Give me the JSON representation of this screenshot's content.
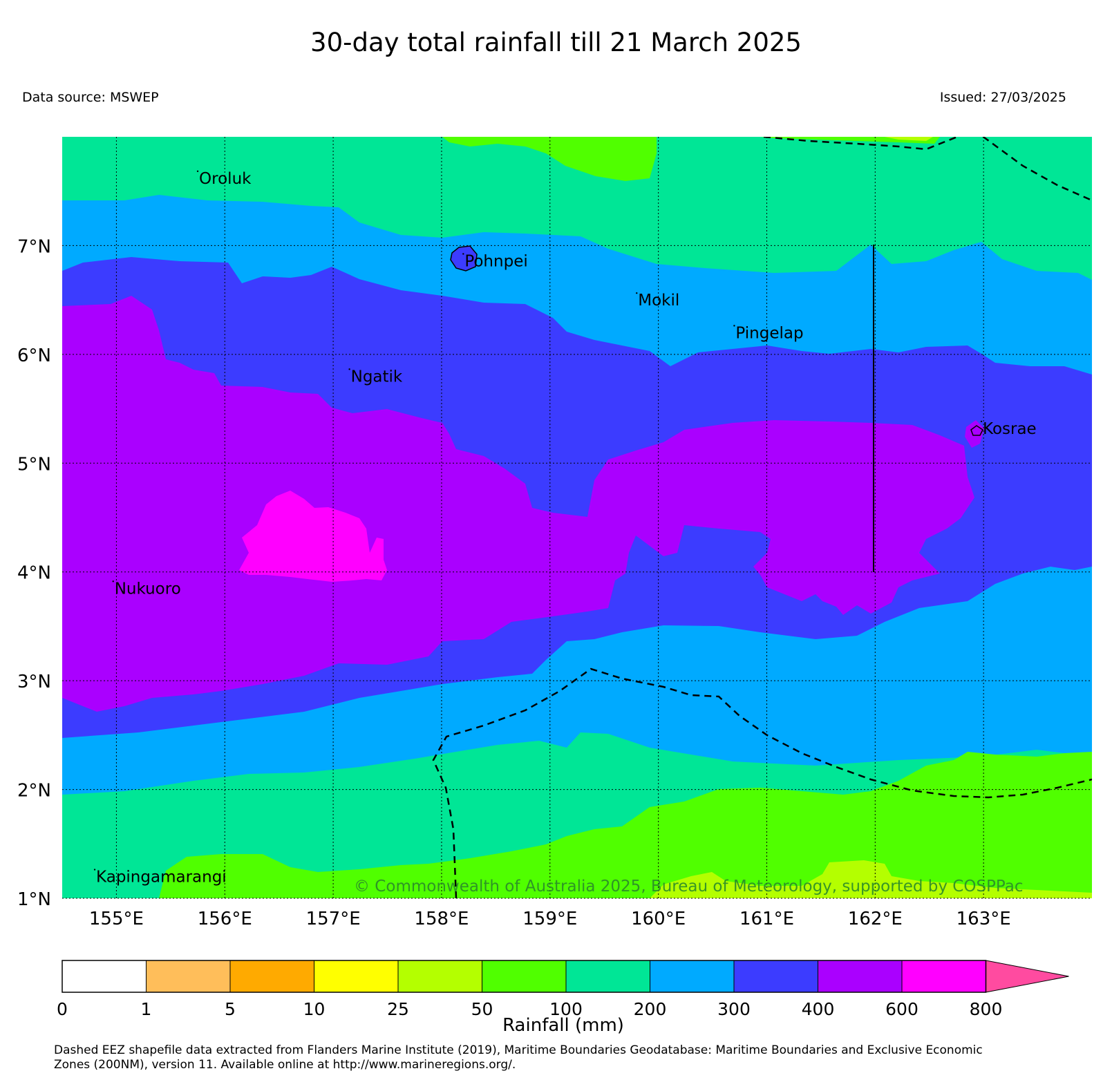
{
  "title": "30-day total rainfall till 21 March 2025",
  "data_source": "Data source: MSWEP",
  "issued": "Issued: 27/03/2025",
  "copyright": "© Commonwealth of Australia 2025, Bureau of Meteorology, supported by COSPPac",
  "footnote_line1": "Dashed EEZ shapefile data extracted from Flanders Marine Institute (2019), Maritime Boundaries Geodatabase: Maritime Boundaries and Exclusive Economic",
  "footnote_line2": "Zones (200NM), version 11. Available online at http://www.marineregions.org/.",
  "map": {
    "lon_range": [
      154.5,
      164.0
    ],
    "lat_range": [
      1.0,
      8.0
    ],
    "lon_ticks": [
      {
        "value": 155,
        "label": "155°E"
      },
      {
        "value": 156,
        "label": "156°E"
      },
      {
        "value": 157,
        "label": "157°E"
      },
      {
        "value": 158,
        "label": "158°E"
      },
      {
        "value": 159,
        "label": "159°E"
      },
      {
        "value": 160,
        "label": "160°E"
      },
      {
        "value": 161,
        "label": "161°E"
      },
      {
        "value": 162,
        "label": "162°E"
      },
      {
        "value": 163,
        "label": "163°E"
      }
    ],
    "lat_ticks": [
      {
        "value": 1,
        "label": "1°N"
      },
      {
        "value": 2,
        "label": "2°N"
      },
      {
        "value": 3,
        "label": "3°N"
      },
      {
        "value": 4,
        "label": "4°N"
      },
      {
        "value": 5,
        "label": "5°N"
      },
      {
        "value": 6,
        "label": "6°N"
      },
      {
        "value": 7,
        "label": "7°N"
      }
    ],
    "grid": true,
    "places": [
      {
        "name": "Oroluk",
        "lon": 155.75,
        "lat": 7.62
      },
      {
        "name": "Pohnpei",
        "lon": 158.2,
        "lat": 6.86
      },
      {
        "name": "Mokil",
        "lon": 159.8,
        "lat": 6.5
      },
      {
        "name": "Pingelap",
        "lon": 160.7,
        "lat": 6.2
      },
      {
        "name": "Ngatik",
        "lon": 157.15,
        "lat": 5.8
      },
      {
        "name": "Kosrae",
        "lon": 162.98,
        "lat": 5.32
      },
      {
        "name": "Nukuoro",
        "lon": 154.97,
        "lat": 3.85
      },
      {
        "name": "Kapingamarangi",
        "lon": 154.8,
        "lat": 1.2
      }
    ]
  },
  "colorbar": {
    "title": "Rainfall (mm)",
    "tick_labels": [
      "0",
      "1",
      "5",
      "10",
      "25",
      "50",
      "100",
      "200",
      "300",
      "400",
      "600",
      "800"
    ],
    "colors": [
      "#ffffff",
      "#ffbe5a",
      "#ffaa00",
      "#ffff00",
      "#b4ff00",
      "#50ff00",
      "#00e696",
      "#00aaff",
      "#3c3cff",
      "#aa00ff",
      "#ff00ff",
      "#ff4ba0"
    ]
  },
  "colors": {
    "c50_100": "#50ff00",
    "c100_200": "#00e696",
    "c200_300": "#00aaff",
    "c300_400": "#3c3cff",
    "c400_600": "#aa00ff",
    "c600_800": "#ff00ff",
    "c25_50": "#b4ff00"
  }
}
